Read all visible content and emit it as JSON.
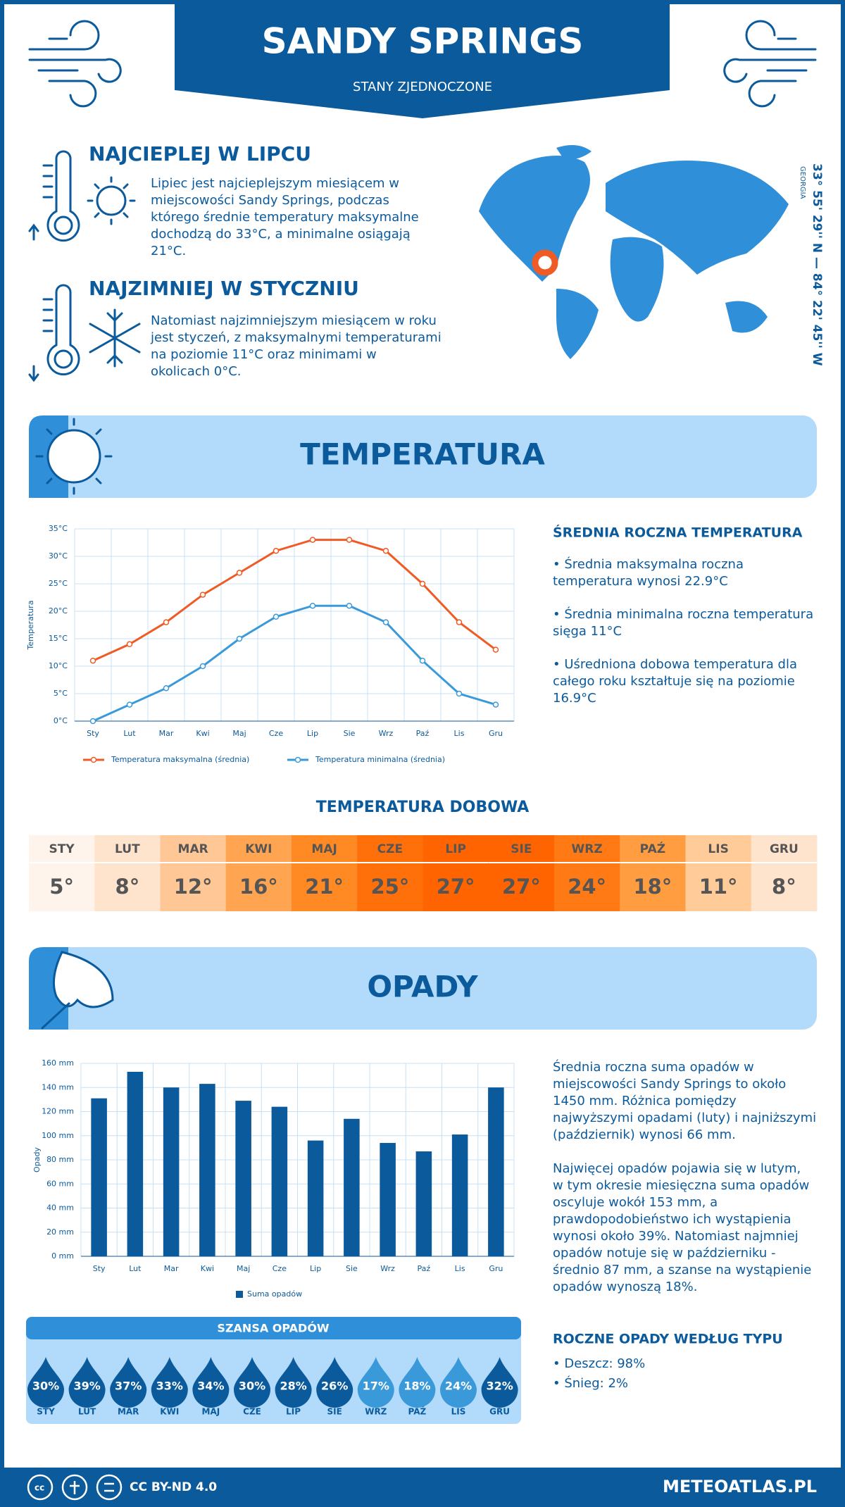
{
  "header": {
    "title": "SANDY SPRINGS",
    "subtitle": "STANY ZJEDNOCZONE"
  },
  "coords": {
    "text": "33° 55' 29'' N — 84° 22' 45'' W",
    "region": "GEORGIA"
  },
  "warmest": {
    "title": "NAJCIEPLEJ W LIPCU",
    "lines": [
      "Lipiec jest najcieplejszym miesiącem w",
      "miejscowości Sandy Springs, podczas",
      "którego średnie temperatury maksymalne",
      "dochodzą do 33°C, a minimalne osiągają",
      "21°C."
    ]
  },
  "coldest": {
    "title": "NAJZIMNIEJ W STYCZNIU",
    "lines": [
      "Natomiast najzimniejszym miesiącem w roku",
      "jest styczeń, z maksymalnymi temperaturami",
      "na poziomie 11°C oraz minimami w",
      "okolicach 0°C."
    ]
  },
  "temperature_section": {
    "title": "TEMPERATURA"
  },
  "precipitation_section": {
    "title": "OPADY"
  },
  "chart_data": [
    {
      "type": "line",
      "ylabel": "Temperatura",
      "categories": [
        "Sty",
        "Lut",
        "Mar",
        "Kwi",
        "Maj",
        "Cze",
        "Lip",
        "Sie",
        "Wrz",
        "Paź",
        "Lis",
        "Gru"
      ],
      "series": [
        {
          "name": "Temperatura maksymalna (średnia)",
          "color": "#f05a24",
          "values": [
            11,
            14,
            18,
            23,
            27,
            31,
            33,
            33,
            31,
            25,
            18,
            13
          ]
        },
        {
          "name": "Temperatura minimalna (średnia)",
          "color": "#3a9ad9",
          "values": [
            0,
            3,
            6,
            10,
            15,
            19,
            21,
            21,
            18,
            11,
            5,
            3
          ]
        }
      ],
      "ylim": [
        0,
        35
      ],
      "yticks": [
        {
          "value": 0,
          "label": "0°C"
        },
        {
          "value": 5,
          "label": "5°C"
        },
        {
          "value": 10,
          "label": "10°C"
        },
        {
          "value": 15,
          "label": "15°C"
        },
        {
          "value": 20,
          "label": "20°C"
        },
        {
          "value": 25,
          "label": "25°C"
        },
        {
          "value": 30,
          "label": "30°C"
        },
        {
          "value": 35,
          "label": "35°C"
        }
      ],
      "grid": true
    },
    {
      "type": "bar",
      "ylabel": "Opady",
      "categories": [
        "Sty",
        "Lut",
        "Mar",
        "Kwi",
        "Maj",
        "Cze",
        "Lip",
        "Sie",
        "Wrz",
        "Paź",
        "Lis",
        "Gru"
      ],
      "series": [
        {
          "name": "Suma opadów",
          "color": "#0b5a9c",
          "values": [
            131,
            153,
            140,
            143,
            129,
            124,
            96,
            114,
            94,
            87,
            101,
            140
          ]
        }
      ],
      "ylim": [
        0,
        160
      ],
      "yticks": [
        {
          "value": 0,
          "label": "0 mm"
        },
        {
          "value": 20,
          "label": "20 mm"
        },
        {
          "value": 40,
          "label": "40 mm"
        },
        {
          "value": 60,
          "label": "60 mm"
        },
        {
          "value": 80,
          "label": "80 mm"
        },
        {
          "value": 100,
          "label": "100 mm"
        },
        {
          "value": 120,
          "label": "120 mm"
        },
        {
          "value": 140,
          "label": "140 mm"
        },
        {
          "value": 160,
          "label": "160 mm"
        }
      ],
      "grid": true
    }
  ],
  "temp_summary": {
    "title": "ŚREDNIA ROCZNA TEMPERATURA",
    "items": [
      [
        "• Średnia maksymalna roczna",
        "temperatura wynosi 22.9°C"
      ],
      [
        "• Średnia minimalna roczna temperatura",
        "sięga 11°C"
      ],
      [
        "• Uśredniona dobowa temperatura dla",
        "całego roku kształtuje się na poziomie",
        "16.9°C"
      ]
    ]
  },
  "daily_temp": {
    "title": "TEMPERATURA DOBOWA",
    "months": [
      "STY",
      "LUT",
      "MAR",
      "KWI",
      "MAJ",
      "CZE",
      "LIP",
      "SIE",
      "WRZ",
      "PAŹ",
      "LIS",
      "GRU"
    ],
    "cells": [
      "5°",
      "8°",
      "12°",
      "16°",
      "21°",
      "25°",
      "27°",
      "27°",
      "24°",
      "18°",
      "11°",
      "8°"
    ],
    "colors": [
      "#fef4ec",
      "#ffe4cd",
      "#ffc795",
      "#ffa552",
      "#ff8a24",
      "#ff6f0a",
      "#ff6400",
      "#ff6400",
      "#ff7a14",
      "#ff9d40",
      "#ffcb98",
      "#ffe4cd"
    ]
  },
  "precip_text": {
    "paragraphs": [
      [
        "Średnia roczna suma opadów w",
        "miejscowości Sandy Springs to około",
        "1450 mm. Różnica pomiędzy",
        "najwyższymi opadami (luty) i najniższymi",
        "(październik) wynosi 66 mm."
      ],
      [
        "Najwięcej opadów pojawia się w lutym,",
        "w tym okresie miesięczna suma opadów",
        "oscyluje wokół 153 mm, a",
        "prawdopodobieństwo ich wystąpienia",
        "wynosi około 39%. Natomiast najmniej",
        "opadów notuje się w październiku -",
        "średnio 87 mm, a szanse na wystąpienie",
        "opadów wynoszą 18%."
      ]
    ]
  },
  "precip_chance": {
    "title": "SZANSA OPADÓW",
    "months": [
      "STY",
      "LUT",
      "MAR",
      "KWI",
      "MAJ",
      "CZE",
      "LIP",
      "SIE",
      "WRZ",
      "PAŹ",
      "LIS",
      "GRU"
    ],
    "cells": [
      "30%",
      "39%",
      "37%",
      "33%",
      "34%",
      "30%",
      "28%",
      "26%",
      "17%",
      "18%",
      "24%",
      "32%"
    ],
    "colors": [
      "#0b5a9c",
      "#0b5a9c",
      "#0b5a9c",
      "#0b5a9c",
      "#0b5a9c",
      "#0b5a9c",
      "#0b5a9c",
      "#0b5a9c",
      "#3a9ad9",
      "#3a9ad9",
      "#3a9ad9",
      "#0b5a9c"
    ]
  },
  "precip_type": {
    "title": "ROCZNE OPADY WEDŁUG TYPU",
    "items": [
      "• Deszcz: 98%",
      "• Śnieg: 2%"
    ]
  },
  "footer": {
    "license": "CC BY-ND 4.0",
    "site": "METEOATLAS.PL"
  }
}
